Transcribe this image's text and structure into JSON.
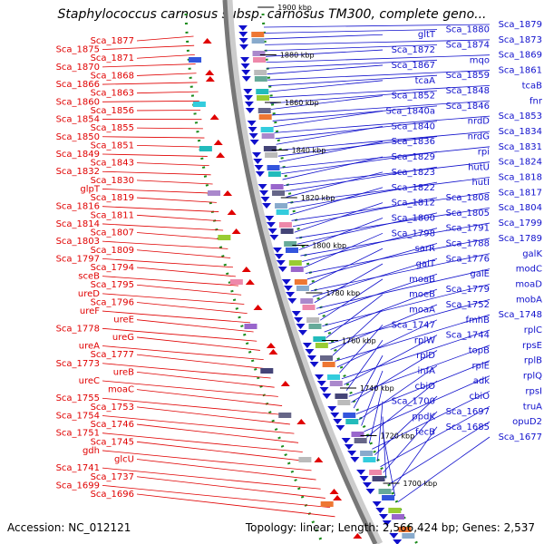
{
  "title": "Staphylococcus carnosus subsp. carnosus TM300, complete geno...",
  "footer": {
    "accession": "Accession: NC_012121",
    "summary": "Topology: linear; Length: 2,566,424 bp; Genes: 2,537"
  },
  "colors": {
    "forward": "#e00000",
    "reverse": "#1010cc",
    "backbone": "#777777",
    "dots": "#1a8a1a"
  },
  "ticks": [
    "1900 kbp",
    "1880 kbp",
    "1860 kbp",
    "1840 kbp",
    "1820 kbp",
    "1800 kbp",
    "1780 kbp",
    "1760 kbp",
    "1740 kbp",
    "1720 kbp",
    "1700 kbp"
  ],
  "left_labels": [
    "Sca_1877",
    "Sca_1875",
    "Sca_1871",
    "Sca_1870",
    "Sca_1868",
    "Sca_1866",
    "Sca_1863",
    "Sca_1860",
    "Sca_1856",
    "Sca_1854",
    "Sca_1855",
    "Sca_1850",
    "Sca_1851",
    "Sca_1849",
    "Sca_1843",
    "Sca_1832",
    "Sca_1830",
    "glpT",
    "Sca_1819",
    "Sca_1816",
    "Sca_1811",
    "Sca_1814",
    "Sca_1807",
    "Sca_1803",
    "Sca_1809",
    "Sca_1797",
    "Sca_1794",
    "sceB",
    "Sca_1795",
    "ureD",
    "Sca_1796",
    "ureF",
    "ureE",
    "Sca_1778",
    "ureG",
    "ureA",
    "Sca_1777",
    "Sca_1773",
    "ureB",
    "ureC",
    "moaC",
    "Sca_1755",
    "Sca_1753",
    "Sca_1754",
    "Sca_1746",
    "Sca_1751",
    "Sca_1745",
    "gdh",
    "glcU",
    "Sca_1741",
    "Sca_1737",
    "Sca_1699",
    "Sca_1696"
  ],
  "right_labels": [
    "Sca_1879",
    "Sca_1880",
    "gltT",
    "Sca_1873",
    "Sca_1874",
    "Sca_1872",
    "Sca_1869",
    "mqo",
    "Sca_1867",
    "Sca_1861",
    "Sca_1859",
    "tcaA",
    "tcaB",
    "Sca_1848",
    "Sca_1852",
    "fnr",
    "Sca_1846",
    "Sca_1840a",
    "Sca_1853",
    "nrdD",
    "Sca_1840",
    "Sca_1834",
    "nrdG",
    "Sca_1836",
    "Sca_1831",
    "rpi",
    "Sca_1829",
    "Sca_1824",
    "hutU",
    "Sca_1823",
    "Sca_1818",
    "hutI",
    "Sca_1822",
    "Sca_1817",
    "Sca_1808",
    "Sca_1812",
    "Sca_1804",
    "Sca_1805",
    "Sca_1800",
    "Sca_1799",
    "Sca_1791",
    "Sca_1798",
    "Sca_1789",
    "Sca_1788",
    "sarR",
    "galK",
    "Sca_1776",
    "galT",
    "modC",
    "galE",
    "moaB",
    "moaD",
    "Sca_1779",
    "moeB",
    "mobA",
    "Sca_1752",
    "moaA",
    "Sca_1748",
    "fmhB",
    "Sca_1747",
    "rplC",
    "Sca_1744",
    "rplW",
    "rpsE",
    "topB",
    "rplD",
    "rplB",
    "rplE",
    "infA",
    "rplQ",
    "adk",
    "cbiO",
    "rpsI",
    "cbiO",
    "Sca_1700",
    "truA",
    "Sca_1697",
    "ppdK",
    "opuD2",
    "Sca_1685",
    "fecB",
    "Sca_1677"
  ]
}
